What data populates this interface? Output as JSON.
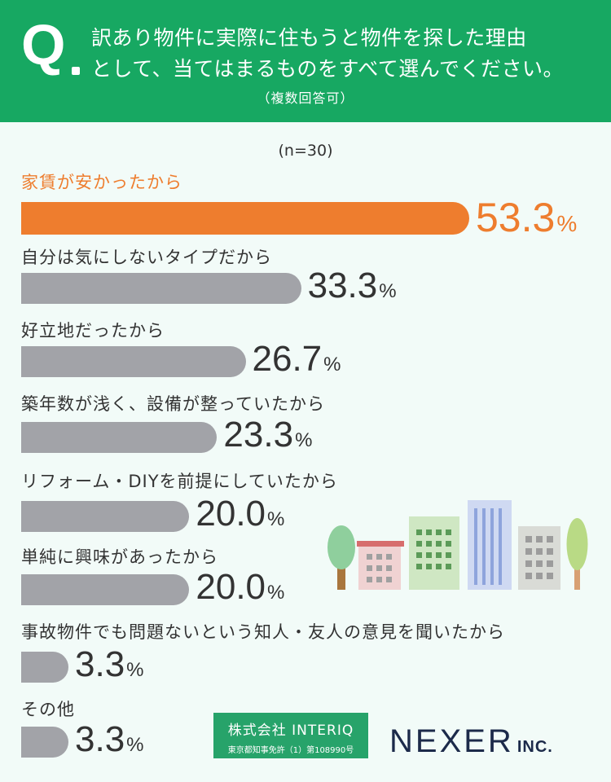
{
  "question": {
    "mark": "Q",
    "line1": "訳あり物件に実際に住もうと物件を探した理由",
    "line2": "として、当てはまるものをすべて選んでください。",
    "note": "（複数回答可）"
  },
  "chart_data": {
    "type": "bar",
    "orientation": "horizontal",
    "title": "訳あり物件に実際に住もうと物件を探した理由として、当てはまるものをすべて選んでください。",
    "sample_label": "(n=30)",
    "unit": "%",
    "categories": [
      "家賃が安かったから",
      "自分は気にしないタイプだから",
      "好立地だったから",
      "築年数が浅く、設備が整っていたから",
      "リフォーム・DIYを前提にしていたから",
      "単純に興味があったから",
      "事故物件でも問題ないという知人・友人の意見を聞いたから",
      "その他"
    ],
    "values": [
      53.3,
      33.3,
      26.7,
      23.3,
      20.0,
      20.0,
      3.3,
      3.3
    ],
    "value_labels": [
      "53.3",
      "33.3",
      "26.7",
      "23.3",
      "20.0",
      "20.0",
      "3.3",
      "3.3"
    ],
    "highlight_index": 0,
    "colors": {
      "highlight": "#ee7d2e",
      "bar": "#a2a3a8"
    },
    "xlim": [
      0,
      53.3
    ]
  },
  "footer": {
    "interiq_main": "株式会社 INTERIQ",
    "interiq_sub": "東京都知事免許（1）第108990号",
    "nexer_main": "NEXER",
    "nexer_inc": "INC."
  },
  "colors": {
    "header_bg": "#17a862",
    "page_bg": "#f2fbf8"
  }
}
